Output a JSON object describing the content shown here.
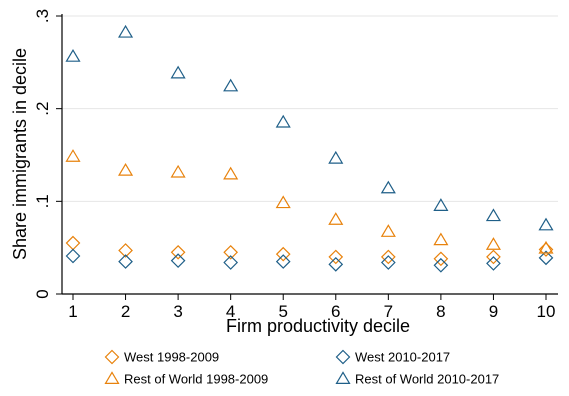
{
  "chart_data": {
    "type": "scatter",
    "xlabel": "Firm productivity decile",
    "ylabel": "Share immigrants in decile",
    "x": [
      1,
      2,
      3,
      4,
      5,
      6,
      7,
      8,
      9,
      10
    ],
    "xlim": [
      1,
      10
    ],
    "ylim": [
      0,
      0.3
    ],
    "x_ticks": [
      "1",
      "2",
      "3",
      "4",
      "5",
      "6",
      "7",
      "8",
      "9",
      "10"
    ],
    "y_ticks": [
      {
        "value": 0,
        "label": "0"
      },
      {
        "value": 0.1,
        "label": ".1"
      },
      {
        "value": 0.2,
        "label": ".2"
      },
      {
        "value": 0.3,
        "label": ".3"
      }
    ],
    "grid": true,
    "legend_position": "bottom",
    "series": [
      {
        "name": "West 1998-2009",
        "marker": "diamond",
        "color": "#E8820C",
        "values": [
          0.055,
          0.047,
          0.045,
          0.045,
          0.043,
          0.04,
          0.04,
          0.038,
          0.04,
          0.048
        ]
      },
      {
        "name": "West 2010-2017",
        "marker": "diamond",
        "color": "#1F5F88",
        "values": [
          0.041,
          0.035,
          0.036,
          0.034,
          0.035,
          0.032,
          0.034,
          0.031,
          0.033,
          0.039
        ]
      },
      {
        "name": "Rest of World 1998-2009",
        "marker": "triangle",
        "color": "#E8820C",
        "values": [
          0.148,
          0.133,
          0.131,
          0.129,
          0.098,
          0.08,
          0.067,
          0.058,
          0.053,
          0.049
        ]
      },
      {
        "name": "Rest of World 2010-2017",
        "marker": "triangle",
        "color": "#1F5F88",
        "values": [
          0.256,
          0.282,
          0.238,
          0.224,
          0.185,
          0.146,
          0.114,
          0.095,
          0.084,
          0.074
        ]
      }
    ]
  }
}
